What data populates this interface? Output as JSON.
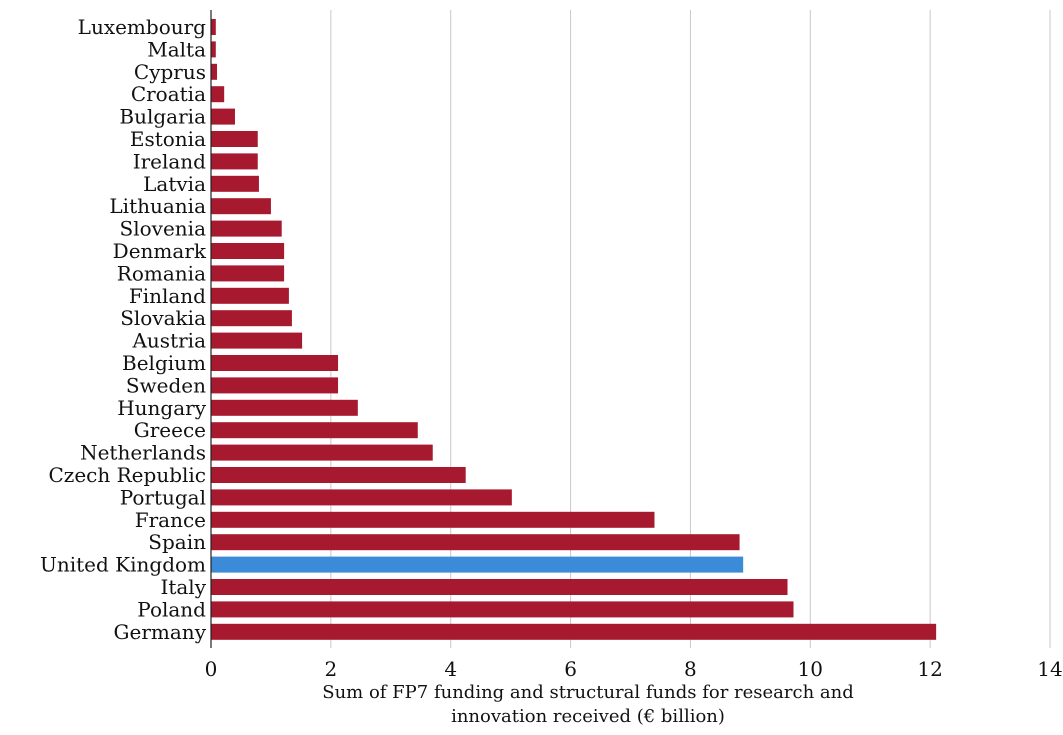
{
  "chart_data": {
    "type": "bar",
    "orientation": "horizontal",
    "categories": [
      "Luxembourg",
      "Malta",
      "Cyprus",
      "Croatia",
      "Bulgaria",
      "Estonia",
      "Ireland",
      "Latvia",
      "Lithuania",
      "Slovenia",
      "Denmark",
      "Romania",
      "Finland",
      "Slovakia",
      "Austria",
      "Belgium",
      "Sweden",
      "Hungary",
      "Greece",
      "Netherlands",
      "Czech Republic",
      "Portugal",
      "France",
      "Spain",
      "United Kingdom",
      "Italy",
      "Poland",
      "Germany"
    ],
    "values": [
      0.08,
      0.08,
      0.1,
      0.22,
      0.4,
      0.78,
      0.78,
      0.8,
      1.0,
      1.18,
      1.22,
      1.22,
      1.3,
      1.35,
      1.52,
      2.12,
      2.12,
      2.45,
      3.45,
      3.7,
      4.25,
      5.02,
      7.4,
      8.82,
      8.88,
      9.62,
      9.72,
      12.1
    ],
    "highlight": "United Kingdom",
    "colors": {
      "bar": "#a6192e",
      "highlight": "#3b8bd9",
      "grid": "#c8c8c8"
    },
    "xlim": [
      0,
      14
    ],
    "xticks": [
      0,
      2,
      4,
      6,
      8,
      10,
      12,
      14
    ],
    "xlabel_lines": [
      "Sum of FP7 funding and structural funds for research and",
      "innovation received (€ billion)"
    ],
    "title": "",
    "ylabel": "",
    "grid": "vertical",
    "legend": "none"
  }
}
